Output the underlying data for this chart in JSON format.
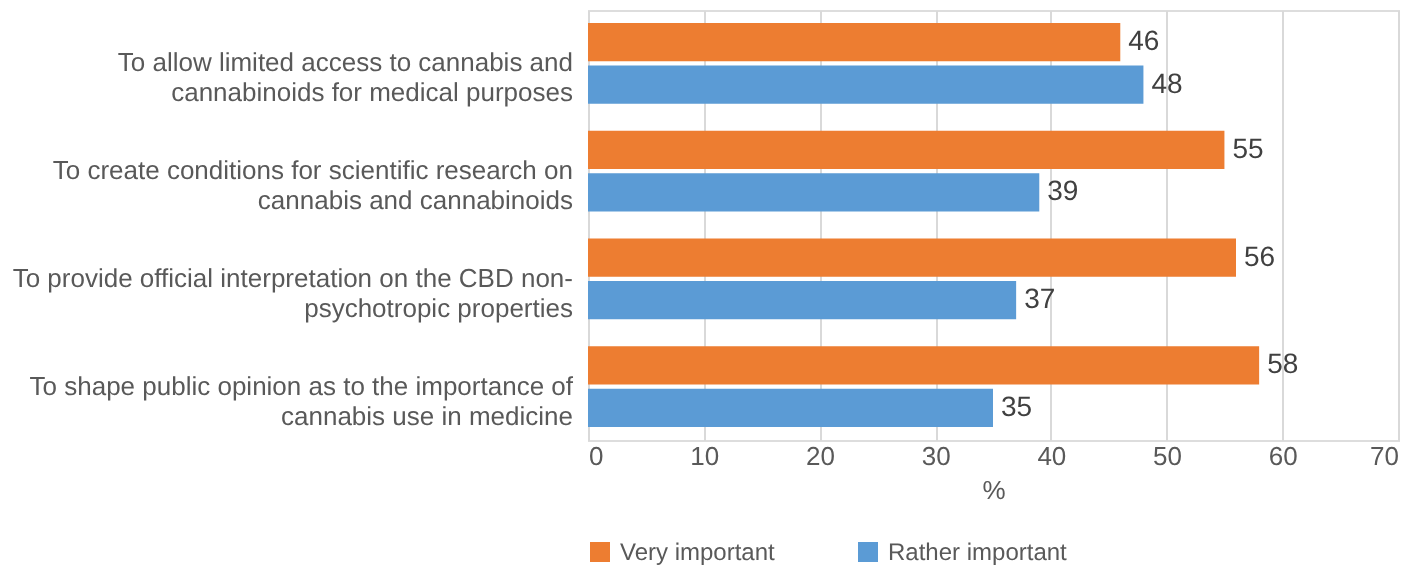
{
  "chart_data": {
    "type": "bar",
    "orientation": "horizontal",
    "categories": [
      "To allow limited access to cannabis and cannabinoids for medical purposes",
      "To create conditions for scientific research on cannabis and cannabinoids",
      "To provide official interpretation on the CBD non-psychotropic properties",
      "To shape public opinion as to the importance of cannabis use in medicine"
    ],
    "series": [
      {
        "name": "Very important",
        "color": "#ed7d31",
        "values": [
          46,
          55,
          56,
          58
        ]
      },
      {
        "name": "Rather important",
        "color": "#5b9bd5",
        "values": [
          48,
          39,
          37,
          35
        ]
      }
    ],
    "xlim": [
      0,
      70
    ],
    "xticks": [
      0,
      10,
      20,
      30,
      40,
      50,
      60,
      70
    ],
    "xlabel": "%",
    "grid": "x",
    "legend": "bottom",
    "data_labels": true
  }
}
